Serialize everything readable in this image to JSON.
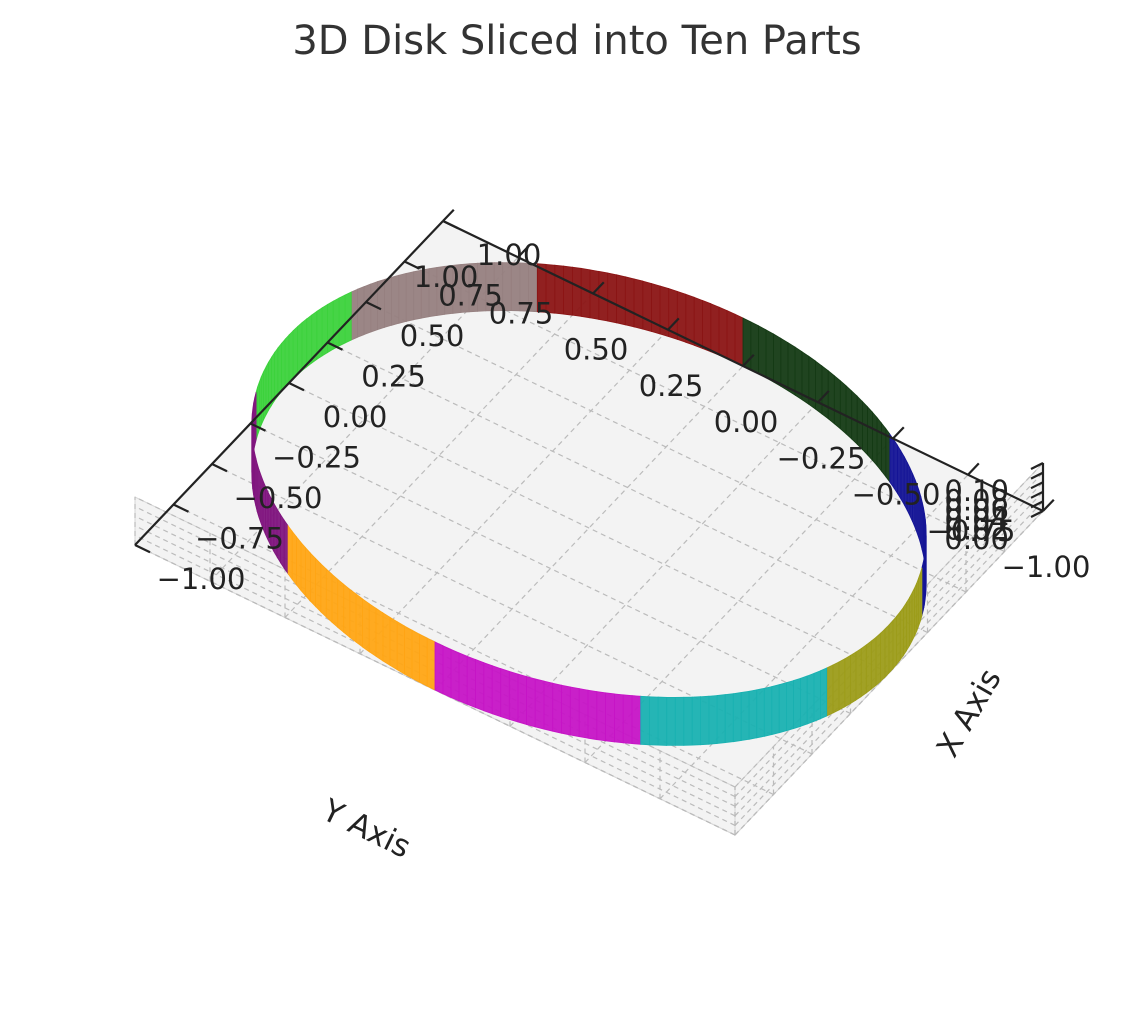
{
  "chart_data": {
    "type": "3d-surface",
    "title": "3D Disk Sliced into Ten Parts",
    "xlabel": "X Axis",
    "ylabel": "Y Axis",
    "zlabel": "",
    "xlim": [
      -1.0,
      1.0
    ],
    "ylim": [
      -1.0,
      1.0
    ],
    "zlim": [
      0.0,
      0.1
    ],
    "x_ticks": [
      "−1.00",
      "−0.75",
      "−0.50",
      "−0.25",
      "0.00",
      "0.25",
      "0.50",
      "0.75",
      "1.00"
    ],
    "y_ticks": [
      "−1.00",
      "−0.75",
      "−0.50",
      "−0.25",
      "0.00",
      "0.25",
      "0.50",
      "0.75",
      "1.00"
    ],
    "z_ticks": [
      "0.00",
      "0.02",
      "0.04",
      "0.06",
      "0.08",
      "0.10"
    ],
    "disk": {
      "radius": 1.0,
      "height": 0.1,
      "num_slices": 10
    },
    "slices": [
      {
        "index": 1,
        "start_deg": 0,
        "end_deg": 36,
        "color": "#8b1414"
      },
      {
        "index": 2,
        "start_deg": 36,
        "end_deg": 72,
        "color": "#968080"
      },
      {
        "index": 3,
        "start_deg": 72,
        "end_deg": 108,
        "color": "#3cd23c"
      },
      {
        "index": 4,
        "start_deg": 108,
        "end_deg": 144,
        "color": "#80157e"
      },
      {
        "index": 5,
        "start_deg": 144,
        "end_deg": 180,
        "color": "#ffa514"
      },
      {
        "index": 6,
        "start_deg": 180,
        "end_deg": 216,
        "color": "#c614c6"
      },
      {
        "index": 7,
        "start_deg": 216,
        "end_deg": 252,
        "color": "#19b1b1"
      },
      {
        "index": 8,
        "start_deg": 252,
        "end_deg": 288,
        "color": "#9c9c19"
      },
      {
        "index": 9,
        "start_deg": 288,
        "end_deg": 324,
        "color": "#141496"
      },
      {
        "index": 10,
        "start_deg": 324,
        "end_deg": 360,
        "color": "#143a14"
      }
    ],
    "grid": true,
    "view": {
      "elev": 50,
      "azim": 25
    }
  }
}
